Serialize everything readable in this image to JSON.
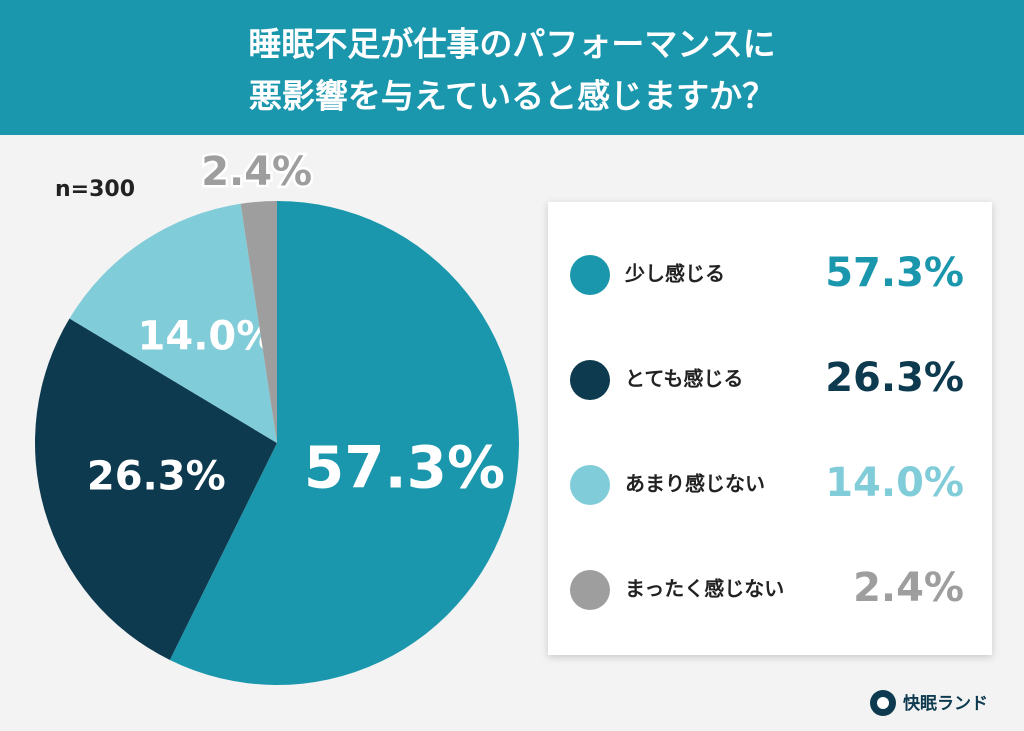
{
  "chart_data": {
    "type": "pie",
    "title": [
      "睡眠不足が仕事のパフォーマンスに",
      "悪影響を与えていると感じますか？"
    ],
    "note": "n=300",
    "categories": [
      "少し感じる",
      "とても感じる",
      "あまり感じない",
      "まったく感じない"
    ],
    "values": [
      57.3,
      26.3,
      14.0,
      2.4
    ],
    "value_labels": [
      "57.3%",
      "26.3%",
      "14.0%",
      "2.4%"
    ],
    "colors": [
      "#1b97ad",
      "#0d3a4f",
      "#80ccd8",
      "#9e9e9e"
    ],
    "source": "快眠ランド"
  }
}
